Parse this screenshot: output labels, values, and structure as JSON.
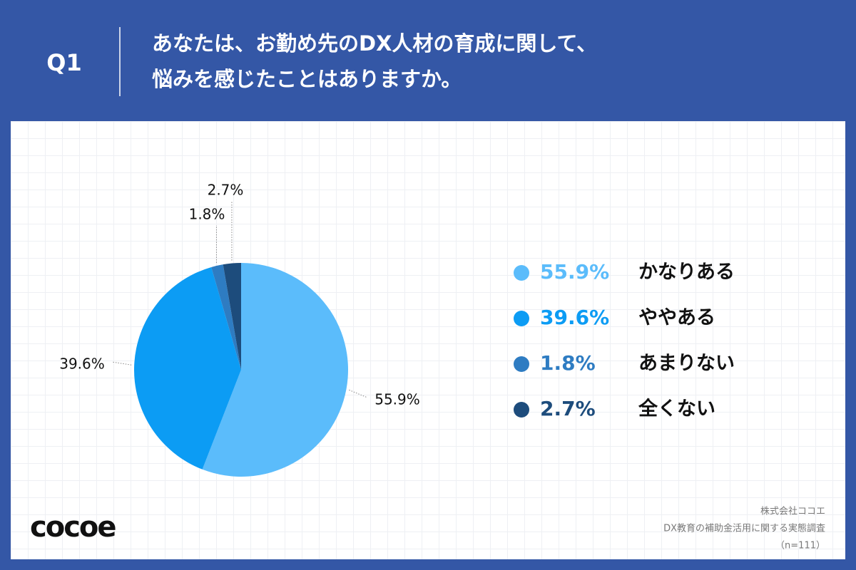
{
  "header": {
    "question": "Q1",
    "title_lines": [
      "あなたは、お勤め先のDX人材の育成に関して、",
      "悩みを感じたことはありますか。"
    ]
  },
  "chart_data": {
    "type": "pie",
    "categories": [
      "かなりある",
      "ややある",
      "あまりない",
      "全くない"
    ],
    "values": [
      55.9,
      39.6,
      1.8,
      2.7
    ],
    "value_labels": [
      "55.9%",
      "39.6%",
      "1.8%",
      "2.7%"
    ],
    "colors": [
      "#5bbcfb",
      "#0c9cf4",
      "#2e7cc2",
      "#1d4c7c"
    ]
  },
  "footer": {
    "logo": "cocoe",
    "source_lines": [
      "株式会社ココエ",
      "DX教育の補助金活用に関する実態調査",
      "（n=111）"
    ]
  }
}
